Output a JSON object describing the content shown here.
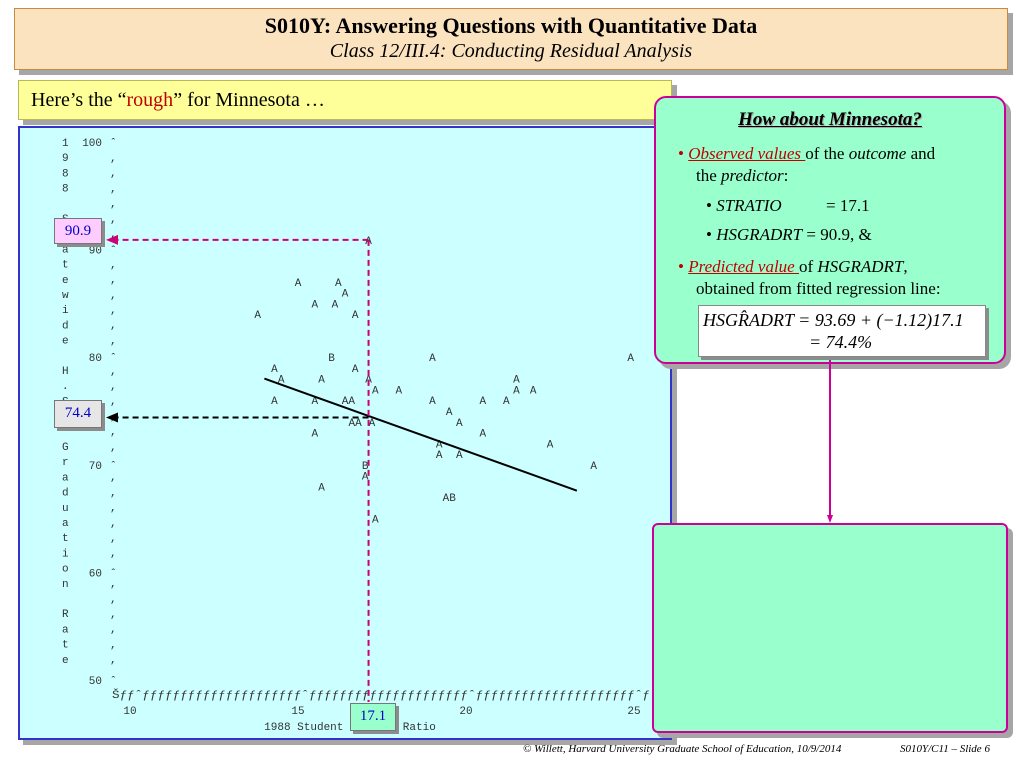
{
  "header": {
    "title": "S010Y: Answering Questions with Quantitative Data",
    "subtitle": "Class 12/III.4: Conducting Residual Analysis"
  },
  "intro": {
    "prefix": "Here’s the “",
    "highlight": "rough",
    "suffix": "” for Minnesota …"
  },
  "callouts": {
    "y_observed": "90.9",
    "y_predicted": "74.4",
    "x_value": "17.1"
  },
  "minnesota_panel": {
    "heading": "How about Minnesota?",
    "bullet1_link": "Observed values ",
    "bullet1_rest": "of the ",
    "bullet1_outcome": "outcome",
    "bullet1_and": " and",
    "bullet1_line2_pre": "the ",
    "bullet1_predictor": "predictor",
    "bullet1_colon": ":",
    "sub1_var": "STRATIO",
    "sub1_val": "= 17.1",
    "sub2_var": "HSGRADRT",
    "sub2_val": " = 90.9, &",
    "bullet2_link": "Predicted value ",
    "bullet2_rest": "of ",
    "bullet2_var": "HSGRADRT",
    "bullet2_comma": ",",
    "bullet2_line2": "obtained from fitted regression line:",
    "formula_line1": "HSGR̂ADRT = 93.69 + (−1.12)17.1",
    "formula_line2": "= 74.4%"
  },
  "chart_data": {
    "type": "scatter",
    "xlabel": "1988 Student Teacher Ratio",
    "ylabel": "1988 Statewide H.S. Graduation Rate",
    "xlim": [
      10,
      25
    ],
    "ylim": [
      50,
      100
    ],
    "x_ticks": [
      "10",
      "15",
      "20",
      "25"
    ],
    "y_ticks": [
      "100",
      "90",
      "80",
      "70",
      "60",
      "50"
    ],
    "x_axis_rule": "Šƒƒˆƒƒƒƒƒƒƒƒƒƒƒƒƒƒƒƒƒƒƒƒƒˆƒƒƒƒƒƒƒƒƒƒƒƒƒƒƒƒƒƒƒƒƒˆƒƒƒƒƒƒƒƒƒƒƒƒƒƒƒƒƒƒƒƒƒˆƒ",
    "points": [
      {
        "x": 17.1,
        "y": 90.9,
        "label": "A"
      },
      {
        "x": 15.0,
        "y": 87.0,
        "label": "A"
      },
      {
        "x": 16.2,
        "y": 87.0,
        "label": "A"
      },
      {
        "x": 16.4,
        "y": 86.0,
        "label": "A"
      },
      {
        "x": 15.5,
        "y": 85.0,
        "label": "A"
      },
      {
        "x": 16.1,
        "y": 85.0,
        "label": "A"
      },
      {
        "x": 13.8,
        "y": 84.0,
        "label": "A"
      },
      {
        "x": 16.7,
        "y": 84.0,
        "label": "A"
      },
      {
        "x": 16.0,
        "y": 80.0,
        "label": "B"
      },
      {
        "x": 19.0,
        "y": 80.0,
        "label": "A"
      },
      {
        "x": 24.9,
        "y": 80.0,
        "label": "A"
      },
      {
        "x": 14.3,
        "y": 79.0,
        "label": "A"
      },
      {
        "x": 16.7,
        "y": 79.0,
        "label": "A"
      },
      {
        "x": 14.5,
        "y": 78.0,
        "label": "A"
      },
      {
        "x": 15.7,
        "y": 78.0,
        "label": "A"
      },
      {
        "x": 17.1,
        "y": 78.0,
        "label": "A"
      },
      {
        "x": 21.5,
        "y": 78.0,
        "label": "A"
      },
      {
        "x": 17.3,
        "y": 77.0,
        "label": "A"
      },
      {
        "x": 18.0,
        "y": 77.0,
        "label": "A"
      },
      {
        "x": 21.5,
        "y": 77.0,
        "label": "A"
      },
      {
        "x": 22.0,
        "y": 77.0,
        "label": "A"
      },
      {
        "x": 14.3,
        "y": 76.0,
        "label": "A"
      },
      {
        "x": 15.5,
        "y": 76.0,
        "label": "A"
      },
      {
        "x": 16.5,
        "y": 76.0,
        "label": "AA"
      },
      {
        "x": 19.0,
        "y": 76.0,
        "label": "A"
      },
      {
        "x": 20.5,
        "y": 76.0,
        "label": "A"
      },
      {
        "x": 21.2,
        "y": 76.0,
        "label": "A"
      },
      {
        "x": 19.5,
        "y": 75.0,
        "label": "A"
      },
      {
        "x": 16.7,
        "y": 74.0,
        "label": "AA"
      },
      {
        "x": 17.2,
        "y": 74.0,
        "label": "A"
      },
      {
        "x": 19.8,
        "y": 74.0,
        "label": "A"
      },
      {
        "x": 15.5,
        "y": 73.0,
        "label": "A"
      },
      {
        "x": 20.5,
        "y": 73.0,
        "label": "A"
      },
      {
        "x": 19.2,
        "y": 72.0,
        "label": "A"
      },
      {
        "x": 22.5,
        "y": 72.0,
        "label": "A"
      },
      {
        "x": 19.2,
        "y": 71.0,
        "label": "A"
      },
      {
        "x": 19.8,
        "y": 71.0,
        "label": "A"
      },
      {
        "x": 17.0,
        "y": 70.0,
        "label": "B"
      },
      {
        "x": 23.8,
        "y": 70.0,
        "label": "A"
      },
      {
        "x": 17.0,
        "y": 69.0,
        "label": "A"
      },
      {
        "x": 15.7,
        "y": 68.0,
        "label": "A"
      },
      {
        "x": 19.5,
        "y": 67.0,
        "label": "AB"
      },
      {
        "x": 17.3,
        "y": 65.0,
        "label": "A"
      }
    ],
    "fit_line": {
      "intercept": 93.69,
      "slope": -1.12,
      "x_from": 14.0,
      "x_to": 23.3
    },
    "highlight": {
      "x": 17.1,
      "y_observed": 90.9,
      "y_predicted": 74.4
    },
    "grid": false,
    "legend": "none"
  },
  "footer": {
    "credit": "© Willett, Harvard University Graduate School of Education, 10/9/2014",
    "slide": "S010Y/C11 – Slide 6"
  },
  "colors": {
    "title_bg": "#fbe3c0",
    "intro_bg": "#ffff99",
    "plot_bg": "#ccffff",
    "panel_bg": "#99ffcc",
    "panel_border": "#cc0099",
    "accent_red": "#c00000",
    "callout_text": "#0000cc"
  }
}
